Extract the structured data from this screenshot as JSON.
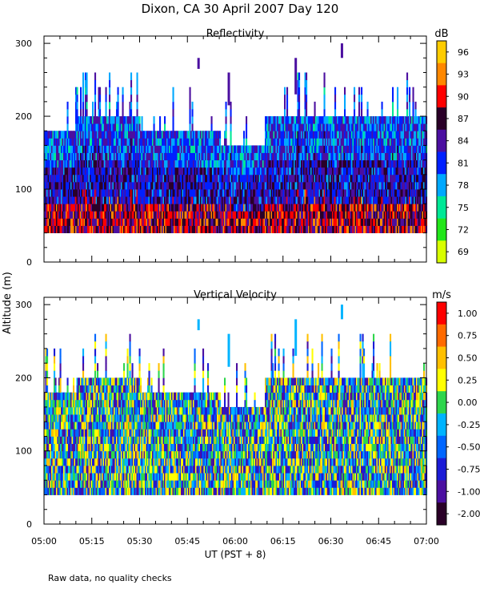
{
  "title": "Dixon, CA 30 April 2007  Day 120",
  "footer_note": "Raw data, no quality checks",
  "shared": {
    "ylabel": "Altitude (m)",
    "xlabel": "UT  (PST + 8)",
    "x_ticks": [
      "05:00",
      "05:15",
      "05:30",
      "05:45",
      "06:00",
      "06:15",
      "06:30",
      "06:45",
      "07:00"
    ],
    "x_range_minutes": [
      0,
      120
    ],
    "y_ticks": [
      0,
      100,
      200,
      300
    ],
    "y_range_m": [
      0,
      310
    ]
  },
  "chart_data": [
    {
      "type": "heatmap",
      "title": "Reflectivity",
      "units": "dB",
      "xlabel": "UT  (PST + 8)",
      "ylabel": "Altitude (m)",
      "ylim": [
        0,
        310
      ],
      "colorbar_ticks": [
        "96",
        "93",
        "90",
        "87",
        "84",
        "81",
        "78",
        "75",
        "72",
        "69"
      ],
      "colorbar_range": [
        67.5,
        97.5
      ],
      "colors": [
        "#ffcc00",
        "#ff8800",
        "#ff0000",
        "#2a0028",
        "#4b0fa0",
        "#0020ff",
        "#00a8ff",
        "#00e896",
        "#22e61a",
        "#d8ff00"
      ],
      "data_bottom_m": 40,
      "column_tops_m": [
        {
          "x_min": [
            0,
            10
          ],
          "top": 180
        },
        {
          "x_min": [
            10,
            30
          ],
          "top": 200
        },
        {
          "x_min": [
            30,
            55
          ],
          "top": 180
        },
        {
          "x_min": [
            55,
            69
          ],
          "top": 160
        },
        {
          "x_min": [
            69,
            120
          ],
          "top": 200
        }
      ],
      "isolated_echoes": [
        {
          "x_min": 48.5,
          "alt_m": [
            265,
            280
          ]
        },
        {
          "x_min": 58.0,
          "alt_m": [
            215,
            260
          ]
        },
        {
          "x_min": 79.0,
          "alt_m": [
            230,
            280
          ]
        },
        {
          "x_min": 93.5,
          "alt_m": [
            280,
            300
          ]
        }
      ]
    },
    {
      "type": "heatmap",
      "title": "Vertical Velocity",
      "units": "m/s",
      "xlabel": "UT  (PST + 8)",
      "ylabel": "Altitude (m)",
      "ylim": [
        0,
        310
      ],
      "colorbar_ticks": [
        "1.00",
        "0.75",
        "0.50",
        "0.25",
        "0.00",
        "-0.25",
        "-0.50",
        "-0.75",
        "-1.00",
        "-2.00"
      ],
      "colorbar_range": [
        -2.0,
        1.25
      ],
      "colors": [
        "#ff0000",
        "#ff6a00",
        "#ffc000",
        "#ffff00",
        "#2ed64c",
        "#00b4ff",
        "#0066ff",
        "#1b1bd6",
        "#4b0fa0",
        "#2a0028"
      ],
      "data_bottom_m": 40,
      "column_tops_m": [
        {
          "x_min": [
            0,
            10
          ],
          "top": 180
        },
        {
          "x_min": [
            10,
            30
          ],
          "top": 200
        },
        {
          "x_min": [
            30,
            55
          ],
          "top": 180
        },
        {
          "x_min": [
            55,
            69
          ],
          "top": 160
        },
        {
          "x_min": [
            69,
            120
          ],
          "top": 200
        }
      ],
      "isolated_echoes": [
        {
          "x_min": 48.5,
          "alt_m": [
            265,
            280
          ]
        },
        {
          "x_min": 58.0,
          "alt_m": [
            215,
            260
          ]
        },
        {
          "x_min": 79.0,
          "alt_m": [
            230,
            280
          ]
        },
        {
          "x_min": 93.5,
          "alt_m": [
            280,
            300
          ]
        }
      ]
    }
  ]
}
